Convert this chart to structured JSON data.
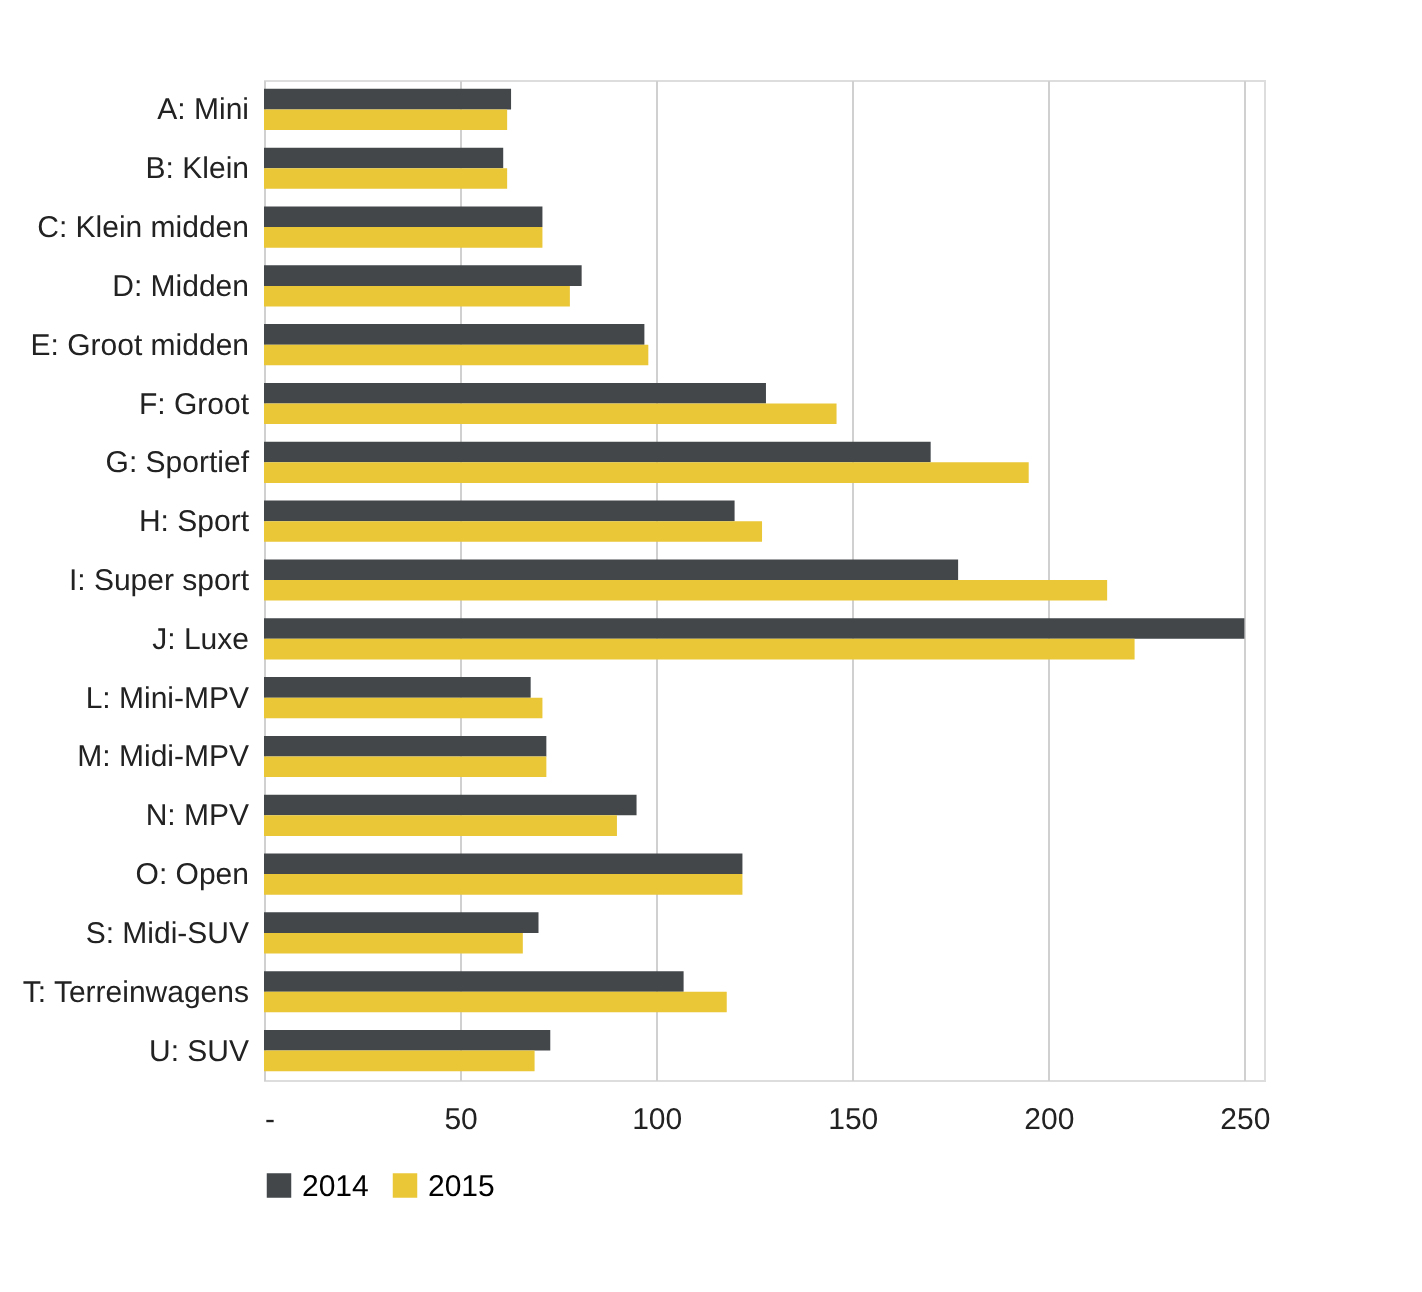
{
  "chart_data": {
    "type": "bar",
    "orientation": "horizontal",
    "categories": [
      "A: Mini",
      "B: Klein",
      "C: Klein midden",
      "D: Midden",
      "E: Groot midden",
      "F: Groot",
      "G: Sportief",
      "H: Sport",
      "I: Super sport",
      "J: Luxe",
      "L: Mini-MPV",
      "M: Midi-MPV",
      "N: MPV",
      "O: Open",
      "S: Midi-SUV",
      "T: Terreinwagens",
      "U: SUV"
    ],
    "series": [
      {
        "name": "2014",
        "color": "#43474a",
        "values": [
          63,
          61,
          71,
          81,
          97,
          128,
          170,
          120,
          177,
          250,
          68,
          72,
          95,
          122,
          70,
          107,
          73
        ]
      },
      {
        "name": "2015",
        "color": "#eac737",
        "values": [
          62,
          62,
          71,
          78,
          98,
          146,
          195,
          127,
          215,
          222,
          71,
          72,
          90,
          122,
          66,
          118,
          69
        ]
      }
    ],
    "xlim": [
      0,
      255
    ],
    "xticks": [
      {
        "value": 0,
        "label": "-"
      },
      50,
      100,
      150,
      200,
      250
    ],
    "grid": "x",
    "legend": "bottom"
  }
}
